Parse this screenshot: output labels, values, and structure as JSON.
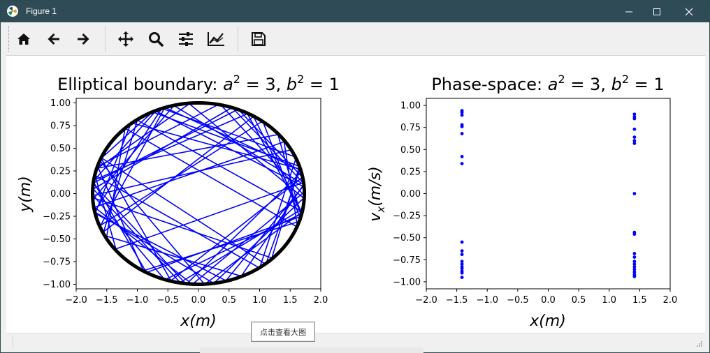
{
  "window": {
    "title": "Figure 1"
  },
  "toolbar": {
    "buttons": [
      "home",
      "back",
      "forward",
      "pan",
      "zoom",
      "configure-subplots",
      "edit-axis",
      "save"
    ]
  },
  "tooltip": {
    "label": "点击查看大图"
  },
  "chart_data": [
    {
      "type": "line",
      "title_text": "Elliptical boundary: ",
      "title_math": [
        "a",
        "2",
        " = 3, ",
        "b",
        "2",
        " = 1"
      ],
      "xlabel": "x(m)",
      "ylabel": "y(m)",
      "xlim": [
        -2.0,
        2.0
      ],
      "ylim": [
        -1.05,
        1.05
      ],
      "xticks": [
        "−2.0",
        "−1.5",
        "−1.0",
        "−0.5",
        "0.0",
        "0.5",
        "1.0",
        "1.5",
        "2.0"
      ],
      "yticks": [
        "1.00",
        "0.75",
        "0.50",
        "0.25",
        "0.00",
        "−0.25",
        "−0.50",
        "−0.75",
        "−1.00"
      ],
      "boundary": {
        "a2": 3,
        "b2": 1,
        "color": "#000000"
      },
      "trajectory_color": "#0000ff",
      "trajectory": [
        [
          -1.71,
          0.1
        ],
        [
          -0.2,
          -1.0
        ],
        [
          1.7,
          0.25
        ],
        [
          -0.55,
          0.95
        ],
        [
          -1.6,
          -0.35
        ],
        [
          1.05,
          0.8
        ],
        [
          1.68,
          -0.3
        ],
        [
          -0.9,
          -0.85
        ],
        [
          -1.65,
          0.3
        ],
        [
          0.35,
          0.99
        ],
        [
          1.7,
          0.0
        ],
        [
          -0.1,
          -1.0
        ],
        [
          -1.7,
          -0.15
        ],
        [
          1.4,
          0.57
        ],
        [
          1.62,
          -0.37
        ],
        [
          -1.2,
          0.72
        ],
        [
          -1.5,
          -0.47
        ],
        [
          0.7,
          -0.91
        ],
        [
          1.72,
          0.1
        ],
        [
          -0.4,
          0.97
        ],
        [
          -1.71,
          -0.05
        ],
        [
          1.2,
          -0.71
        ],
        [
          1.65,
          0.3
        ],
        [
          -0.75,
          0.9
        ],
        [
          -1.62,
          0.37
        ],
        [
          0.1,
          -1.0
        ],
        [
          1.7,
          -0.2
        ],
        [
          -1.0,
          0.81
        ],
        [
          -1.55,
          -0.42
        ],
        [
          0.9,
          0.85
        ],
        [
          1.67,
          -0.18
        ],
        [
          -0.3,
          -0.98
        ],
        [
          -1.72,
          0.05
        ],
        [
          0.55,
          0.95
        ],
        [
          1.71,
          0.12
        ],
        [
          -1.35,
          -0.61
        ],
        [
          -1.69,
          0.2
        ],
        [
          1.0,
          -0.82
        ],
        [
          1.6,
          0.4
        ],
        [
          -0.6,
          0.94
        ],
        [
          -1.7,
          -0.2
        ],
        [
          0.25,
          -0.99
        ],
        [
          1.72,
          -0.05
        ],
        [
          -0.15,
          0.99
        ],
        [
          -1.65,
          0.28
        ],
        [
          1.3,
          0.65
        ],
        [
          1.68,
          -0.25
        ],
        [
          -0.85,
          -0.87
        ],
        [
          -1.71,
          0.12
        ],
        [
          0.65,
          0.93
        ],
        [
          1.7,
          0.18
        ],
        [
          -0.45,
          -0.96
        ],
        [
          -1.6,
          0.4
        ],
        [
          1.1,
          -0.78
        ],
        [
          1.66,
          0.27
        ],
        [
          -1.1,
          0.78
        ],
        [
          -1.69,
          -0.22
        ],
        [
          0.45,
          -0.96
        ],
        [
          1.71,
          0.08
        ],
        [
          -0.7,
          0.91
        ],
        [
          -1.7,
          0.15
        ],
        [
          0.8,
          0.88
        ],
        [
          1.69,
          -0.22
        ],
        [
          -0.55,
          -0.95
        ],
        [
          -1.72,
          -0.02
        ],
        [
          1.5,
          0.48
        ]
      ]
    },
    {
      "type": "scatter",
      "title_text": "Phase-space: ",
      "title_math": [
        "a",
        "2",
        " = 3, ",
        "b",
        "2",
        " = 1"
      ],
      "xlabel": "x(m)",
      "ylabel": "v_x(m/s)",
      "xlim": [
        -2.0,
        2.0
      ],
      "ylim": [
        -1.08,
        1.08
      ],
      "xticks": [
        "−2.0",
        "−1.5",
        "−1.0",
        "−0.5",
        "0.0",
        "0.5",
        "1.0",
        "1.5",
        "2.0"
      ],
      "yticks": [
        "1.00",
        "0.75",
        "0.50",
        "0.25",
        "0.00",
        "−0.25",
        "−0.50",
        "−0.75",
        "−1.00"
      ],
      "point_color": "#0000ff",
      "points": [
        [
          -1.4142,
          0.94
        ],
        [
          -1.4142,
          0.92
        ],
        [
          -1.4142,
          0.89
        ],
        [
          -1.4142,
          0.78
        ],
        [
          -1.4142,
          0.76
        ],
        [
          -1.4142,
          0.68
        ],
        [
          -1.4142,
          0.42
        ],
        [
          -1.4142,
          0.34
        ],
        [
          -1.4142,
          -0.55
        ],
        [
          -1.4142,
          -0.65
        ],
        [
          -1.4142,
          -0.69
        ],
        [
          -1.4142,
          -0.77
        ],
        [
          -1.4142,
          -0.8
        ],
        [
          -1.4142,
          -0.83
        ],
        [
          -1.4142,
          -0.85
        ],
        [
          -1.4142,
          -0.88
        ],
        [
          -1.4142,
          -0.9
        ],
        [
          -1.4142,
          -0.95
        ],
        [
          1.4142,
          0.9
        ],
        [
          1.4142,
          0.87
        ],
        [
          1.4142,
          0.85
        ],
        [
          1.4142,
          0.73
        ],
        [
          1.4142,
          0.64
        ],
        [
          1.4142,
          0.6
        ],
        [
          1.4142,
          0.57
        ],
        [
          1.4142,
          0.0
        ],
        [
          1.4142,
          -0.44
        ],
        [
          1.4142,
          -0.46
        ],
        [
          1.4142,
          -0.68
        ],
        [
          1.4142,
          -0.72
        ],
        [
          1.4142,
          -0.77
        ],
        [
          1.4142,
          -0.8
        ],
        [
          1.4142,
          -0.83
        ],
        [
          1.4142,
          -0.86
        ],
        [
          1.4142,
          -0.89
        ],
        [
          1.4142,
          -0.92
        ],
        [
          1.4142,
          -0.94
        ]
      ]
    }
  ]
}
